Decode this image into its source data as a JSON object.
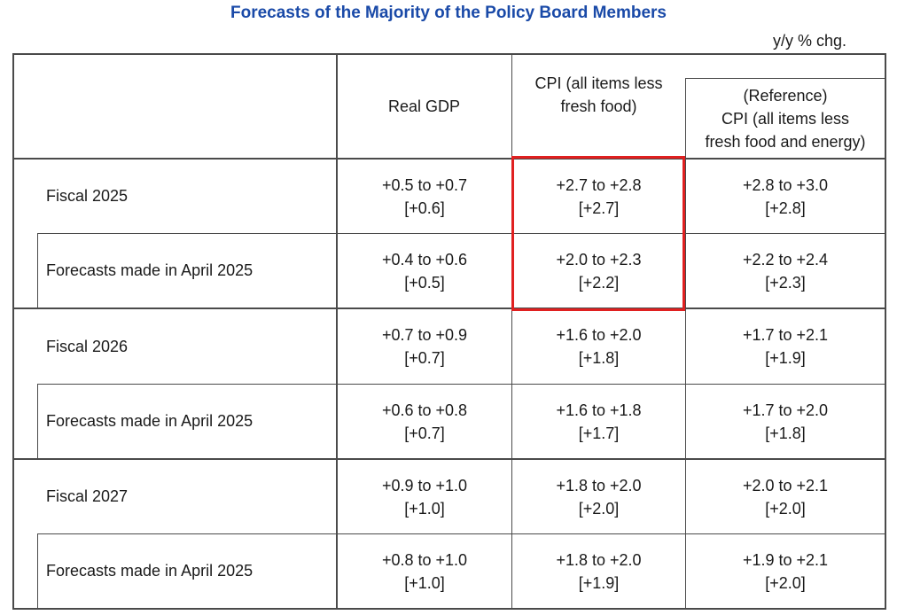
{
  "title": "Forecasts of the Majority of the Policy Board Members",
  "unit": "y/y % chg.",
  "columns": {
    "real_gdp": "Real GDP",
    "cpi_line1": "CPI (all items less",
    "cpi_line2": "fresh food)",
    "ref_line1": "(Reference)",
    "ref_line2": "CPI (all items less",
    "ref_line3": "fresh food and energy)"
  },
  "rows": [
    {
      "label": "Fiscal 2025",
      "gdp": "+0.5 to +0.7",
      "gdp_m": "[+0.6]",
      "cpi": "+2.7 to +2.8",
      "cpi_m": "[+2.7]",
      "core": "+2.8 to +3.0",
      "core_m": "[+2.8]"
    },
    {
      "label": "Forecasts made in April 2025",
      "gdp": "+0.4 to +0.6",
      "gdp_m": "[+0.5]",
      "cpi": "+2.0 to +2.3",
      "cpi_m": "[+2.2]",
      "core": "+2.2 to +2.4",
      "core_m": "[+2.3]"
    },
    {
      "label": "Fiscal 2026",
      "gdp": "+0.7 to +0.9",
      "gdp_m": "[+0.7]",
      "cpi": "+1.6 to +2.0",
      "cpi_m": "[+1.8]",
      "core": "+1.7 to +2.1",
      "core_m": "[+1.9]"
    },
    {
      "label": "Forecasts made in April 2025",
      "gdp": "+0.6 to +0.8",
      "gdp_m": "[+0.7]",
      "cpi": "+1.6 to +1.8",
      "cpi_m": "[+1.7]",
      "core": "+1.7 to +2.0",
      "core_m": "[+1.8]"
    },
    {
      "label": "Fiscal 2027",
      "gdp": "+0.9 to +1.0",
      "gdp_m": "[+1.0]",
      "cpi": "+1.8 to +2.0",
      "cpi_m": "[+2.0]",
      "core": "+2.0 to +2.1",
      "core_m": "[+2.0]"
    },
    {
      "label": "Forecasts made in April 2025",
      "gdp": "+0.8 to +1.0",
      "gdp_m": "[+1.0]",
      "cpi": "+1.8 to +2.0",
      "cpi_m": "[+1.9]",
      "core": "+1.9 to +2.1",
      "core_m": "[+2.0]"
    }
  ],
  "colors": {
    "title": "#1a4aa8",
    "highlight": "#e02020"
  }
}
